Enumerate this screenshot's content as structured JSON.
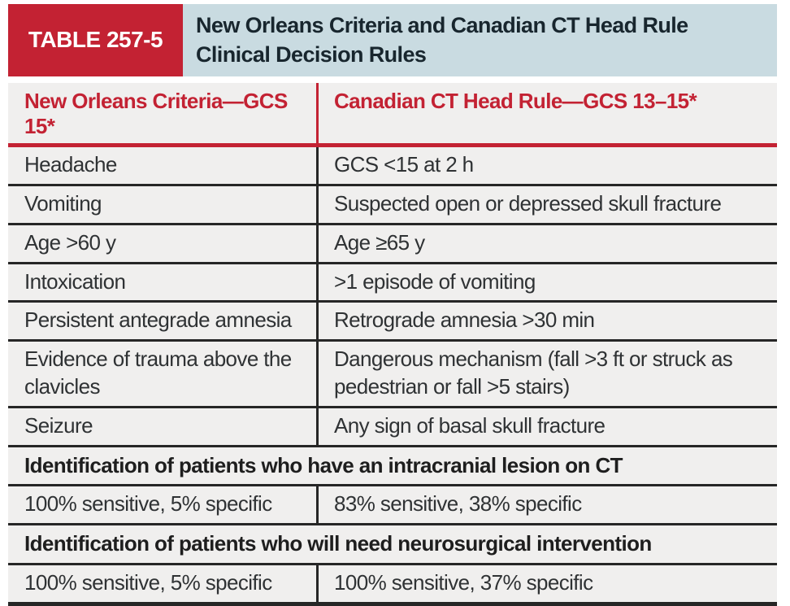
{
  "table": {
    "label": "TABLE 257-5",
    "title": "New Orleans Criteria and Canadian CT Head Rule Clinical Decision Rules",
    "columns": {
      "left_header": "New Orleans Criteria—GCS 15*",
      "right_header": "Canadian CT Head Rule—GCS 13–15*"
    },
    "criteria_rows": [
      {
        "left": "Headache",
        "right": "GCS <15 at 2 h"
      },
      {
        "left": "Vomiting",
        "right": "Suspected open or depressed skull fracture"
      },
      {
        "left": "Age >60 y",
        "right": "Age ≥65 y"
      },
      {
        "left": "Intoxication",
        "right": ">1 episode of vomiting"
      },
      {
        "left": "Persistent antegrade amnesia",
        "right": "Retrograde amnesia >30 min"
      },
      {
        "left": "Evidence of trauma above the clavicles",
        "right": "Dangerous mechanism (fall >3 ft or struck as pedestrian or fall >5 stairs)"
      },
      {
        "left": "Seizure",
        "right": "Any sign of basal skull fracture"
      }
    ],
    "sections": [
      {
        "heading": "Identification of patients who have an intracranial lesion on CT",
        "left": "100% sensitive, 5% specific",
        "right": "83% sensitive, 38% specific"
      },
      {
        "heading": "Identification of patients who will need neurosurgical intervention",
        "left": "100% sensitive, 5% specific",
        "right": "100% sensitive, 37% specific"
      }
    ]
  },
  "colors": {
    "accent_red": "#c32233",
    "header_blue": "#c9dbe1",
    "body_bg": "#f0efee",
    "rule_dark": "#262626",
    "title_text": "#18262e",
    "body_text": "#2f3234"
  }
}
